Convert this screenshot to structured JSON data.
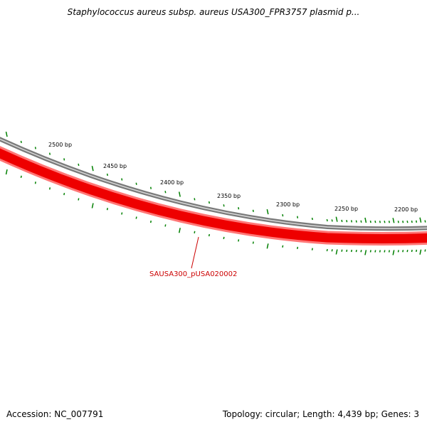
{
  "title": "Staphylococcus aureus subsp. aureus USA300_FPR3757 plasmid p...",
  "footer": {
    "accession": "Accession: NC_007791",
    "summary": "Topology: circular; Length: 4,439 bp; Genes: 3"
  },
  "tick_labels": [
    "2500 bp",
    "2450 bp",
    "2400 bp",
    "2350 bp",
    "2300 bp",
    "2250 bp",
    "2200 bp"
  ],
  "gene_label": "SAUSA300_pUSA020002",
  "colors": {
    "backbone": "#808080",
    "gene": "#ff0000",
    "gene_edge": "#ff6666",
    "ticks": "#008000",
    "gene_label": "#cc0000"
  }
}
